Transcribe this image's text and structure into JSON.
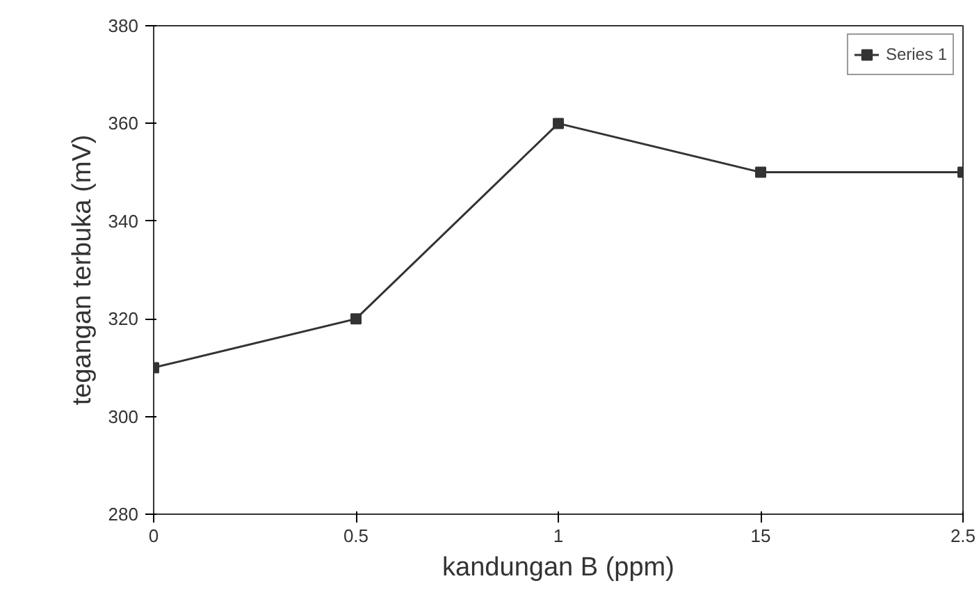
{
  "chart_data": {
    "type": "line",
    "xlabel": "kandungan B (ppm)",
    "ylabel": "tegangan terbuka (mV)",
    "categories": [
      "0",
      "0.5",
      "1",
      "15",
      "2.5"
    ],
    "series": [
      {
        "name": "Series 1",
        "color": "#333333",
        "values": [
          310,
          320,
          360,
          350,
          350
        ]
      }
    ],
    "ylim": [
      280,
      380
    ],
    "yticks": [
      280,
      300,
      320,
      340,
      360,
      380
    ],
    "marker": "square",
    "line_style": "solid",
    "legend": "top right",
    "grid": false
  }
}
